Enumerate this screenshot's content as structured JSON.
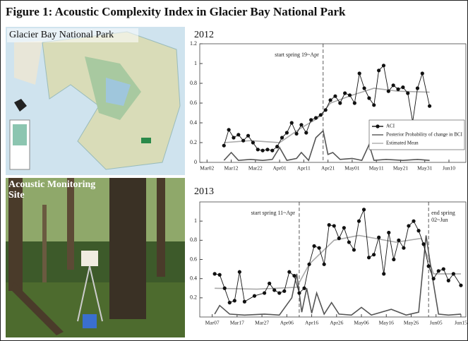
{
  "title": "Figure 1: Acoustic Complexity Index in Glacier Bay National Park",
  "map_label": "Glacier Bay National Park",
  "photo_label": "Acoustic Monitoring Site",
  "chart_data": [
    {
      "type": "line",
      "title": "2012",
      "xlim": [
        "2012-02-28",
        "2012-06-17"
      ],
      "xticks": [
        {
          "value": "2012-03-02",
          "label": "Mar02"
        },
        {
          "value": "2012-03-12",
          "label": "Mar12"
        },
        {
          "value": "2012-03-22",
          "label": "Mar22"
        },
        {
          "value": "2012-04-01",
          "label": "Apr01"
        },
        {
          "value": "2012-04-11",
          "label": "Apr11"
        },
        {
          "value": "2012-04-21",
          "label": "Apr21"
        },
        {
          "value": "2012-05-01",
          "label": "May01"
        },
        {
          "value": "2012-05-11",
          "label": "May11"
        },
        {
          "value": "2012-05-21",
          "label": "May21"
        },
        {
          "value": "2012-05-31",
          "label": "May31"
        },
        {
          "value": "2012-06-10",
          "label": "Jun10"
        }
      ],
      "ylim": [
        0,
        1.2
      ],
      "yticks": [
        0,
        0.2,
        0.4,
        0.6,
        0.8,
        1,
        1.2
      ],
      "legend": "lower right",
      "annotations": [
        {
          "x": "2012-04-19",
          "text": "start spring 19~Apr"
        }
      ],
      "series": [
        {
          "name": "ACI",
          "color": "#111111",
          "markers": true,
          "x": [
            "2012-03-09",
            "2012-03-11",
            "2012-03-13",
            "2012-03-15",
            "2012-03-17",
            "2012-03-19",
            "2012-03-21",
            "2012-03-23",
            "2012-03-25",
            "2012-03-27",
            "2012-03-29",
            "2012-03-31",
            "2012-04-02",
            "2012-04-04",
            "2012-04-06",
            "2012-04-08",
            "2012-04-10",
            "2012-04-12",
            "2012-04-14",
            "2012-04-16",
            "2012-04-18",
            "2012-04-20",
            "2012-04-22",
            "2012-04-24",
            "2012-04-26",
            "2012-04-28",
            "2012-04-30",
            "2012-05-02",
            "2012-05-04",
            "2012-05-06",
            "2012-05-08",
            "2012-05-10",
            "2012-05-12",
            "2012-05-14",
            "2012-05-16",
            "2012-05-18",
            "2012-05-20",
            "2012-05-22",
            "2012-05-24",
            "2012-05-26",
            "2012-05-28",
            "2012-05-30",
            "2012-06-02"
          ],
          "values": [
            0.17,
            0.33,
            0.25,
            0.28,
            0.22,
            0.27,
            0.2,
            0.13,
            0.12,
            0.13,
            0.12,
            0.16,
            0.25,
            0.3,
            0.4,
            0.29,
            0.38,
            0.3,
            0.43,
            0.45,
            0.48,
            0.53,
            0.63,
            0.67,
            0.6,
            0.7,
            0.68,
            0.6,
            0.9,
            0.75,
            0.65,
            0.58,
            0.93,
            0.98,
            0.72,
            0.78,
            0.74,
            0.76,
            0.7,
            0.41,
            0.75,
            0.9,
            0.57
          ]
        },
        {
          "name": "Posterior Probability of change in BCI",
          "color": "#555555",
          "markers": false,
          "x": [
            "2012-03-09",
            "2012-03-12",
            "2012-03-15",
            "2012-03-20",
            "2012-03-25",
            "2012-03-29",
            "2012-04-01",
            "2012-04-04",
            "2012-04-08",
            "2012-04-10",
            "2012-04-13",
            "2012-04-16",
            "2012-04-19",
            "2012-04-21",
            "2012-04-23",
            "2012-04-26",
            "2012-05-01",
            "2012-05-05",
            "2012-05-08",
            "2012-05-10",
            "2012-05-15",
            "2012-05-22",
            "2012-05-28",
            "2012-06-02"
          ],
          "values": [
            0.02,
            0.1,
            0.02,
            0.03,
            0.02,
            0.03,
            0.15,
            0.02,
            0.04,
            0.1,
            0.02,
            0.25,
            0.32,
            0.08,
            0.1,
            0.03,
            0.04,
            0.02,
            0.18,
            0.02,
            0.03,
            0.02,
            0.03,
            0.02
          ]
        },
        {
          "name": "Estimated Mean",
          "color": "#aaaaaa",
          "markers": false,
          "x": [
            "2012-03-09",
            "2012-03-20",
            "2012-04-01",
            "2012-04-10",
            "2012-04-17",
            "2012-04-22",
            "2012-05-01",
            "2012-05-10",
            "2012-05-20",
            "2012-06-02"
          ],
          "values": [
            0.2,
            0.22,
            0.2,
            0.35,
            0.45,
            0.6,
            0.68,
            0.75,
            0.72,
            0.71
          ]
        }
      ]
    },
    {
      "type": "line",
      "title": "2013",
      "xlim": [
        "2013-03-02",
        "2013-06-17"
      ],
      "xticks": [
        {
          "value": "2013-03-07",
          "label": "Mar07"
        },
        {
          "value": "2013-03-17",
          "label": "Mar17"
        },
        {
          "value": "2013-03-27",
          "label": "Mar27"
        },
        {
          "value": "2013-04-06",
          "label": "Apr06"
        },
        {
          "value": "2013-04-16",
          "label": "Apr16"
        },
        {
          "value": "2013-04-26",
          "label": "Apr26"
        },
        {
          "value": "2013-05-06",
          "label": "May06"
        },
        {
          "value": "2013-05-16",
          "label": "May16"
        },
        {
          "value": "2013-05-26",
          "label": "May26"
        },
        {
          "value": "2013-06-05",
          "label": "Jun05"
        },
        {
          "value": "2013-06-15",
          "label": "Jun15"
        }
      ],
      "ylim": [
        0,
        1.2
      ],
      "yticks": [
        0.2,
        0.4,
        0.6,
        0.8,
        1
      ],
      "annotations": [
        {
          "x": "2013-04-11",
          "text": "start spring 11~Apr"
        },
        {
          "x": "2013-06-02",
          "text": "end spring",
          "text2": "02~Jun"
        }
      ],
      "series": [
        {
          "name": "ACI",
          "color": "#111111",
          "markers": true,
          "x": [
            "2013-03-08",
            "2013-03-10",
            "2013-03-12",
            "2013-03-14",
            "2013-03-16",
            "2013-03-18",
            "2013-03-20",
            "2013-03-24",
            "2013-03-28",
            "2013-03-30",
            "2013-04-01",
            "2013-04-03",
            "2013-04-05",
            "2013-04-07",
            "2013-04-09",
            "2013-04-11",
            "2013-04-13",
            "2013-04-15",
            "2013-04-17",
            "2013-04-19",
            "2013-04-21",
            "2013-04-23",
            "2013-04-25",
            "2013-04-27",
            "2013-04-29",
            "2013-05-01",
            "2013-05-03",
            "2013-05-05",
            "2013-05-07",
            "2013-05-09",
            "2013-05-11",
            "2013-05-13",
            "2013-05-15",
            "2013-05-17",
            "2013-05-19",
            "2013-05-21",
            "2013-05-23",
            "2013-05-25",
            "2013-05-27",
            "2013-05-29",
            "2013-05-31",
            "2013-06-02",
            "2013-06-04",
            "2013-06-06",
            "2013-06-08",
            "2013-06-10",
            "2013-06-12",
            "2013-06-15"
          ],
          "values": [
            0.45,
            0.44,
            0.3,
            0.15,
            0.17,
            0.47,
            0.16,
            0.22,
            0.25,
            0.35,
            0.28,
            0.25,
            0.27,
            0.47,
            0.43,
            0.25,
            0.3,
            0.55,
            0.74,
            0.72,
            0.55,
            0.96,
            0.95,
            0.82,
            0.93,
            0.78,
            0.7,
            1.0,
            1.12,
            0.62,
            0.65,
            0.83,
            0.45,
            0.88,
            0.6,
            0.8,
            0.72,
            0.95,
            1.0,
            0.9,
            0.76,
            0.53,
            0.4,
            0.48,
            0.5,
            0.38,
            0.45,
            0.33
          ]
        },
        {
          "name": "Posterior Probability of change in BCI",
          "color": "#555555",
          "markers": false,
          "x": [
            "2013-03-08",
            "2013-03-10",
            "2013-03-14",
            "2013-03-20",
            "2013-03-28",
            "2013-04-03",
            "2013-04-08",
            "2013-04-10",
            "2013-04-12",
            "2013-04-14",
            "2013-04-16",
            "2013-04-18",
            "2013-04-21",
            "2013-04-24",
            "2013-04-27",
            "2013-05-02",
            "2013-05-06",
            "2013-05-10",
            "2013-05-18",
            "2013-05-24",
            "2013-05-29",
            "2013-06-01",
            "2013-06-03",
            "2013-06-06",
            "2013-06-10",
            "2013-06-15"
          ],
          "values": [
            0.03,
            0.12,
            0.03,
            0.02,
            0.03,
            0.02,
            0.2,
            0.45,
            0.05,
            0.3,
            0.04,
            0.25,
            0.03,
            0.15,
            0.03,
            0.02,
            0.1,
            0.02,
            0.08,
            0.02,
            0.05,
            0.85,
            0.5,
            0.03,
            0.02,
            0.03
          ]
        },
        {
          "name": "Estimated Mean",
          "color": "#aaaaaa",
          "markers": false,
          "x": [
            "2013-03-08",
            "2013-03-25",
            "2013-04-10",
            "2013-04-15",
            "2013-04-25",
            "2013-05-05",
            "2013-05-20",
            "2013-05-30",
            "2013-06-04",
            "2013-06-15"
          ],
          "values": [
            0.3,
            0.29,
            0.31,
            0.55,
            0.8,
            0.85,
            0.78,
            0.82,
            0.45,
            0.45
          ]
        }
      ]
    }
  ]
}
